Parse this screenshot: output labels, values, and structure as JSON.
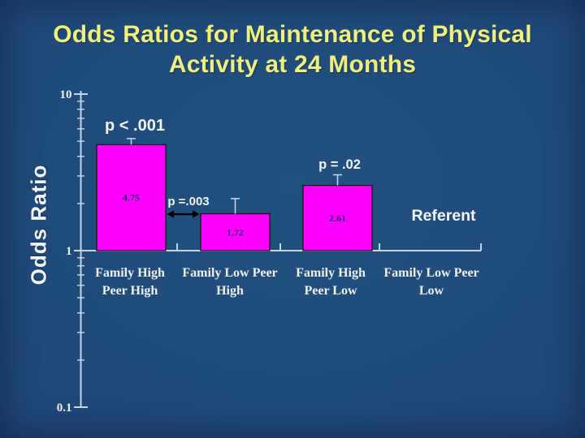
{
  "slide": {
    "title_lines": [
      "Odds Ratios for Maintenance of Physical",
      "Activity at 24 Months"
    ]
  },
  "chart_data": {
    "type": "bar",
    "title": "Odds Ratios for Maintenance of Physical Activity at 24 Months",
    "ylabel": "Odds Ratio",
    "xlabel": "",
    "y_axis": {
      "scale": "log",
      "min": 0.1,
      "max": 10,
      "tick_values": [
        10,
        1,
        0.1
      ],
      "tick_labels": [
        "10",
        "1",
        "0.1"
      ]
    },
    "categories": [
      "Family High Peer High",
      "Family Low Peer High",
      "Family High Peer Low",
      "Family Low Peer Low"
    ],
    "category_label_lines": [
      [
        "Family High",
        "Peer High"
      ],
      [
        "Family Low Peer",
        "High"
      ],
      [
        "Family High",
        "Peer Low"
      ],
      [
        "Family Low Peer",
        "Low"
      ]
    ],
    "values": [
      4.75,
      1.72,
      2.61,
      null
    ],
    "value_labels": [
      "4.75",
      "1.72",
      "2.61",
      ""
    ],
    "error_bar_tops": [
      5.2,
      2.15,
      3.05,
      null
    ],
    "annotations": [
      {
        "text": "p < .001"
      },
      {
        "text": "p =.003"
      },
      {
        "text": "p = .02"
      },
      {
        "text": "Referent"
      }
    ],
    "grid": false,
    "legend": null,
    "colors": {
      "bar": "#ff00ff",
      "bar_border": "#151515",
      "background": "#1e4879",
      "title": "#efef7b",
      "axis": "#c9d4e3",
      "white_text": "#f3f6fa",
      "value_label": "#1b1b66",
      "arrow": "#000000",
      "error_bar": "#cbd6e6"
    }
  }
}
